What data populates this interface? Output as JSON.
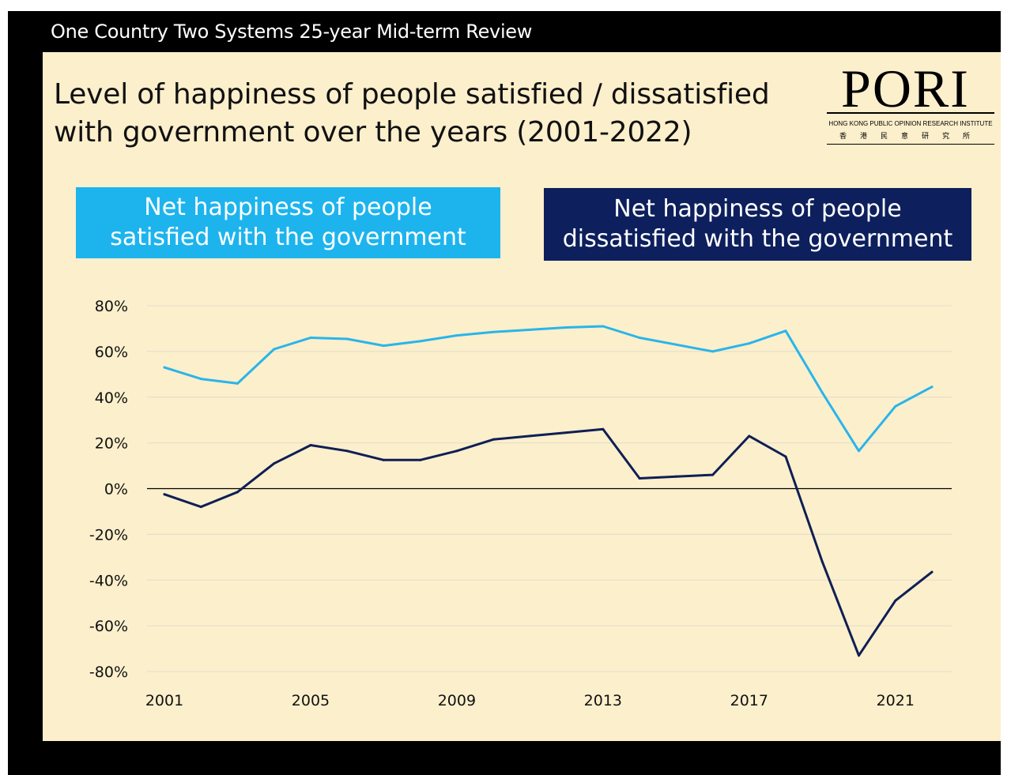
{
  "header": {
    "text": "One Country Two Systems 25-year Mid-term Review"
  },
  "title": {
    "line1": "Level of happiness of people satisfied / dissatisfied",
    "line2": "with government over the years (2001-2022)"
  },
  "logo": {
    "word": "PORI",
    "sub": "HONG KONG PUBLIC OPINION RESEARCH INSTITUTE",
    "cn": "香港民意研究所"
  },
  "legend": {
    "satisfied": {
      "line1": "Net happiness of people",
      "line2": "satisfied with the government",
      "color": "#1db4ee"
    },
    "dissatisfied": {
      "line1": "Net happiness of people",
      "line2": "dissatisfied with the government",
      "color": "#0d1f5c"
    }
  },
  "chart_data": {
    "type": "line",
    "x": [
      2001,
      2002,
      2003,
      2004,
      2005,
      2006,
      2007,
      2008,
      2009,
      2010,
      2011,
      2012,
      2013,
      2014,
      2015,
      2016,
      2017,
      2018,
      2019,
      2020,
      2021,
      2022
    ],
    "series": [
      {
        "name": "Net happiness of people satisfied with the government",
        "color": "#29b5ea",
        "values": [
          53,
          48,
          46,
          61,
          66,
          65.5,
          62.5,
          64.5,
          67,
          68.5,
          69.5,
          70.5,
          71,
          66,
          63,
          60,
          63.5,
          69,
          42,
          16.5,
          36,
          44.5
        ]
      },
      {
        "name": "Net happiness of people dissatisfied with the government",
        "color": "#0f1f55",
        "values": [
          -2.5,
          -8,
          -1.5,
          11,
          19,
          16.5,
          12.5,
          12.5,
          16.5,
          21.5,
          23,
          24.5,
          26,
          4.5,
          5.3,
          6,
          23,
          14,
          -32,
          -73,
          -49,
          -36.5
        ]
      }
    ],
    "ylim": [
      -80,
      80
    ],
    "yticks": [
      80,
      60,
      40,
      20,
      0,
      -20,
      -40,
      -60,
      -80
    ],
    "ytick_labels": [
      "80%",
      "60%",
      "40%",
      "20%",
      "0%",
      "-20%",
      "-40%",
      "-60%",
      "-80%"
    ],
    "xticks": [
      2001,
      2005,
      2009,
      2013,
      2017,
      2021
    ],
    "xtick_labels": [
      "2001",
      "2005",
      "2009",
      "2013",
      "2017",
      "2021"
    ],
    "grid": true
  }
}
